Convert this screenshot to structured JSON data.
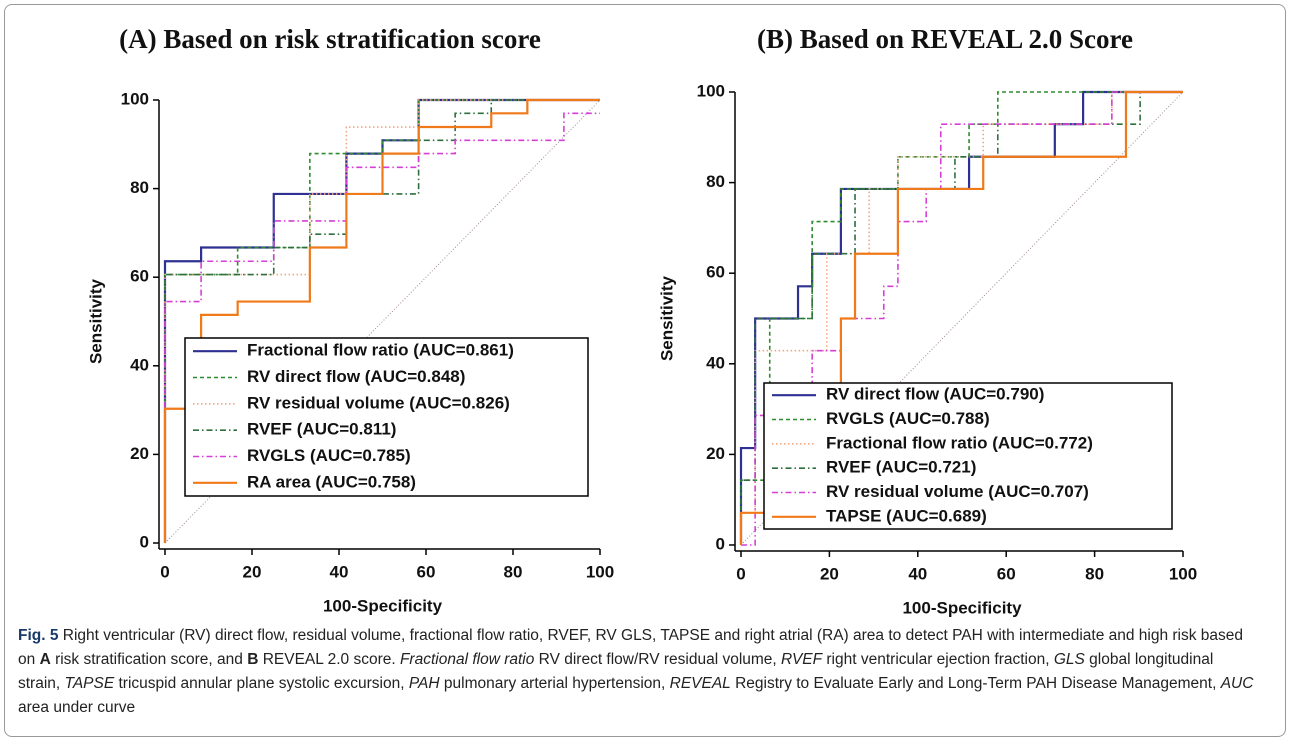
{
  "chart_data": [
    {
      "type": "line",
      "title": "(A) Based on risk stratification score",
      "xlabel": "100-Specificity",
      "ylabel": "Sensitivity",
      "xlim": [
        0,
        100
      ],
      "ylim": [
        0,
        100
      ],
      "xticks": [
        0,
        20,
        40,
        60,
        80,
        100
      ],
      "yticks": [
        0,
        20,
        40,
        60,
        80,
        100
      ],
      "legend": "lower right",
      "step": true,
      "series": [
        {
          "name": "Fractional flow ratio (AUC=0.861)",
          "color": "#2e3192",
          "dash": "solid",
          "x": [
            0,
            0,
            8.3,
            8.3,
            25,
            25,
            41.7,
            41.7,
            50,
            50,
            58.3,
            58.3,
            100
          ],
          "values": [
            0,
            63.6,
            63.6,
            66.7,
            66.7,
            78.8,
            78.8,
            87.9,
            87.9,
            90.9,
            90.9,
            100,
            100
          ]
        },
        {
          "name": "RV direct flow (AUC=0.848)",
          "color": "#2e8b2e",
          "dash": "dashed",
          "x": [
            0,
            0,
            16.7,
            16.7,
            33.3,
            33.3,
            50,
            50,
            58.3,
            58.3,
            100
          ],
          "values": [
            0,
            60.6,
            60.6,
            66.7,
            66.7,
            87.9,
            87.9,
            90.9,
            90.9,
            100,
            100
          ]
        },
        {
          "name": "RV residual volume (AUC=0.826)",
          "color": "#f4a582",
          "dash": "dotted",
          "x": [
            0,
            0,
            33.3,
            33.3,
            41.7,
            41.7,
            58.3,
            58.3,
            100
          ],
          "values": [
            0,
            60.6,
            60.6,
            78.8,
            78.8,
            93.9,
            93.9,
            100,
            100
          ]
        },
        {
          "name": "RVEF (AUC=0.811)",
          "color": "#2f6f3f",
          "dash": "dashdot",
          "x": [
            0,
            0,
            25,
            25,
            33.3,
            33.3,
            41.7,
            41.7,
            58.3,
            58.3,
            66.7,
            66.7,
            75,
            75,
            100
          ],
          "values": [
            0,
            60.6,
            60.6,
            66.7,
            66.7,
            69.7,
            69.7,
            78.8,
            78.8,
            90.9,
            90.9,
            97,
            97,
            100,
            100
          ]
        },
        {
          "name": "RVGLS (AUC=0.785)",
          "color": "#d63fd6",
          "dash": "dashdot",
          "x": [
            0,
            0,
            8.3,
            8.3,
            25,
            25,
            41.7,
            41.7,
            58.3,
            58.3,
            66.7,
            66.7,
            91.7,
            91.7,
            100
          ],
          "values": [
            0,
            54.5,
            54.5,
            63.6,
            63.6,
            72.7,
            72.7,
            84.8,
            84.8,
            87.9,
            87.9,
            90.9,
            90.9,
            97,
            97
          ]
        },
        {
          "name": "RA area (AUC=0.758)",
          "color": "#f07a1a",
          "dash": "solid",
          "x": [
            0,
            0,
            8.3,
            8.3,
            16.7,
            16.7,
            33.3,
            33.3,
            41.7,
            41.7,
            50,
            50,
            58.3,
            58.3,
            75,
            75,
            83.3,
            83.3,
            100
          ],
          "values": [
            0,
            30.3,
            30.3,
            51.5,
            51.5,
            54.5,
            54.5,
            66.7,
            66.7,
            78.8,
            78.8,
            87.9,
            87.9,
            93.9,
            93.9,
            97,
            97,
            100,
            100
          ]
        }
      ]
    },
    {
      "type": "line",
      "title": "(B) Based on REVEAL 2.0 Score",
      "xlabel": "100-Specificity",
      "ylabel": "Sensitivity",
      "xlim": [
        0,
        100
      ],
      "ylim": [
        0,
        100
      ],
      "xticks": [
        0,
        20,
        40,
        60,
        80,
        100
      ],
      "yticks": [
        0,
        20,
        40,
        60,
        80,
        100
      ],
      "legend": "lower right",
      "step": true,
      "series": [
        {
          "name": "RV direct flow (AUC=0.790)",
          "color": "#2e3192",
          "dash": "solid",
          "x": [
            0,
            0,
            3.2,
            3.2,
            12.9,
            12.9,
            16.1,
            16.1,
            22.6,
            22.6,
            51.6,
            51.6,
            71,
            71,
            77.4,
            77.4,
            100
          ],
          "values": [
            0,
            21.4,
            21.4,
            50,
            50,
            57.1,
            57.1,
            64.3,
            64.3,
            78.6,
            78.6,
            85.7,
            85.7,
            92.9,
            92.9,
            100,
            100
          ]
        },
        {
          "name": "RVGLS (AUC=0.788)",
          "color": "#2e8b2e",
          "dash": "dashed",
          "x": [
            0,
            0,
            6.5,
            6.5,
            16.1,
            16.1,
            22.6,
            22.6,
            35.5,
            35.5,
            51.6,
            51.6,
            58.1,
            58.1,
            100
          ],
          "values": [
            0,
            14.3,
            14.3,
            50,
            50,
            71.4,
            71.4,
            78.6,
            78.6,
            85.7,
            85.7,
            92.9,
            92.9,
            100,
            100
          ]
        },
        {
          "name": "Fractional flow ratio (AUC=0.772)",
          "color": "#f4a582",
          "dash": "dotted",
          "x": [
            0,
            0,
            3.2,
            3.2,
            19.4,
            19.4,
            29,
            29,
            35.5,
            35.5,
            54.8,
            54.8,
            83.9,
            83.9,
            100
          ],
          "values": [
            0,
            7.1,
            7.1,
            42.9,
            42.9,
            64.3,
            64.3,
            78.6,
            78.6,
            85.7,
            85.7,
            92.9,
            92.9,
            100,
            100
          ]
        },
        {
          "name": "RVEF (AUC=0.721)",
          "color": "#2f6f3f",
          "dash": "dashdot",
          "x": [
            0,
            0,
            3.2,
            3.2,
            16.1,
            16.1,
            25.8,
            25.8,
            48.4,
            48.4,
            58.1,
            58.1,
            90.3,
            90.3,
            100
          ],
          "values": [
            0,
            14.3,
            14.3,
            50,
            50,
            64.3,
            64.3,
            78.6,
            78.6,
            85.7,
            85.7,
            92.9,
            92.9,
            100,
            100
          ]
        },
        {
          "name": "RV residual volume (AUC=0.707)",
          "color": "#d63fd6",
          "dash": "dashdot",
          "x": [
            0,
            3.2,
            3.2,
            16.1,
            16.1,
            22.6,
            22.6,
            32.3,
            32.3,
            35.5,
            35.5,
            41.9,
            41.9,
            45.2,
            45.2,
            83.9,
            83.9,
            100
          ],
          "values": [
            0,
            0,
            28.6,
            28.6,
            42.9,
            42.9,
            50,
            50,
            57.1,
            57.1,
            71.4,
            71.4,
            78.6,
            78.6,
            92.9,
            92.9,
            100,
            100
          ]
        },
        {
          "name": "TAPSE (AUC=0.689)",
          "color": "#f07a1a",
          "dash": "solid",
          "x": [
            0,
            0,
            22.6,
            22.6,
            25.8,
            25.8,
            35.5,
            35.5,
            54.8,
            54.8,
            87.1,
            87.1,
            100
          ],
          "values": [
            0,
            7.1,
            7.1,
            50,
            50,
            64.3,
            64.3,
            78.6,
            78.6,
            85.7,
            85.7,
            100,
            100
          ]
        }
      ]
    }
  ],
  "caption": {
    "label": "Fig. 5",
    "segments": [
      {
        "text": " Right ventricular (RV) direct flow, residual volume, fractional flow ratio, RVEF, RV GLS, TAPSE and right atrial (RA) area to detect PAH with intermediate and high risk based on "
      },
      {
        "text": "A",
        "bold": true
      },
      {
        "text": " risk stratification score, and "
      },
      {
        "text": "B",
        "bold": true
      },
      {
        "text": " REVEAL 2.0 score. "
      },
      {
        "text": "Fractional flow ratio",
        "italic": true
      },
      {
        "text": " RV direct flow/RV residual volume, "
      },
      {
        "text": "RVEF",
        "italic": true
      },
      {
        "text": " right ventricular ejection fraction, "
      },
      {
        "text": "GLS",
        "italic": true
      },
      {
        "text": " global longitudinal strain, "
      },
      {
        "text": "TAPSE",
        "italic": true
      },
      {
        "text": " tricuspid annular plane systolic excursion, "
      },
      {
        "text": "PAH",
        "italic": true
      },
      {
        "text": " pulmonary arterial hypertension, "
      },
      {
        "text": "REVEAL",
        "italic": true
      },
      {
        "text": " Registry to Evaluate Early and Long-Term PAH Disease Management, "
      },
      {
        "text": "AUC",
        "italic": true
      },
      {
        "text": " area under curve"
      }
    ]
  }
}
